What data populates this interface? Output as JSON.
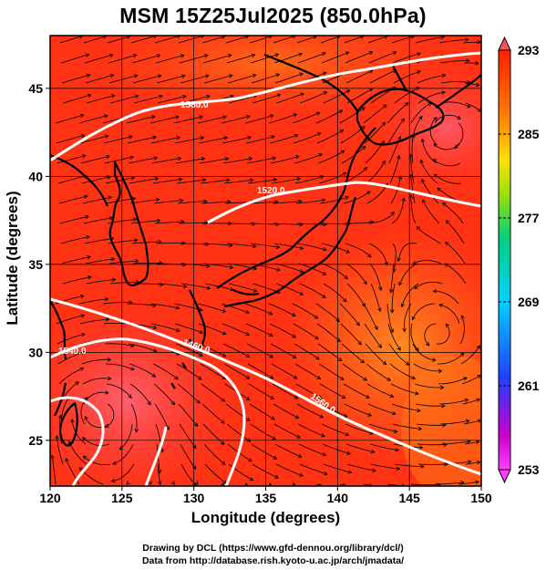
{
  "title": "MSM 15Z25Jul2025 (850.0hPa)",
  "x_axis": {
    "label": "Longitude (degrees)",
    "range": [
      120,
      150
    ],
    "ticks": [
      "120",
      "125",
      "130",
      "135",
      "140",
      "145",
      "150"
    ]
  },
  "y_axis": {
    "label": "Latitude  (degrees)",
    "range": [
      22.4,
      48
    ],
    "ticks": [
      "25",
      "30",
      "35",
      "40",
      "45"
    ]
  },
  "colorbar": {
    "ticks": [
      "293",
      "285",
      "277",
      "269",
      "261",
      "253"
    ],
    "range": [
      253,
      293
    ],
    "colors": [
      "#ff3fff",
      "#cc00cc",
      "#2040ff",
      "#00d0ff",
      "#00d080",
      "#a0e000",
      "#ffe000",
      "#ff8000",
      "#ff2000"
    ]
  },
  "contours": [
    {
      "label": "1580.0",
      "value": 1580
    },
    {
      "label": "1520.0",
      "value": 1520
    },
    {
      "label": "1460.0",
      "value": 1460
    },
    {
      "label": "1540.0",
      "value": 1540
    },
    {
      "label": "1560.0",
      "value": 1560
    }
  ],
  "credits": {
    "line1": "Drawing by DCL (https://www.gfd-dennou.org/library/dcl/)",
    "line2": "Data from http://database.rish.kyoto-u.ac.jp/arch/jmadata/"
  },
  "colors": {
    "field_warm": "#ff2a10",
    "field_orange": "#ff6a10",
    "field_pink": "#ff5060",
    "contour": "#ffffff",
    "coast": "#000000"
  }
}
